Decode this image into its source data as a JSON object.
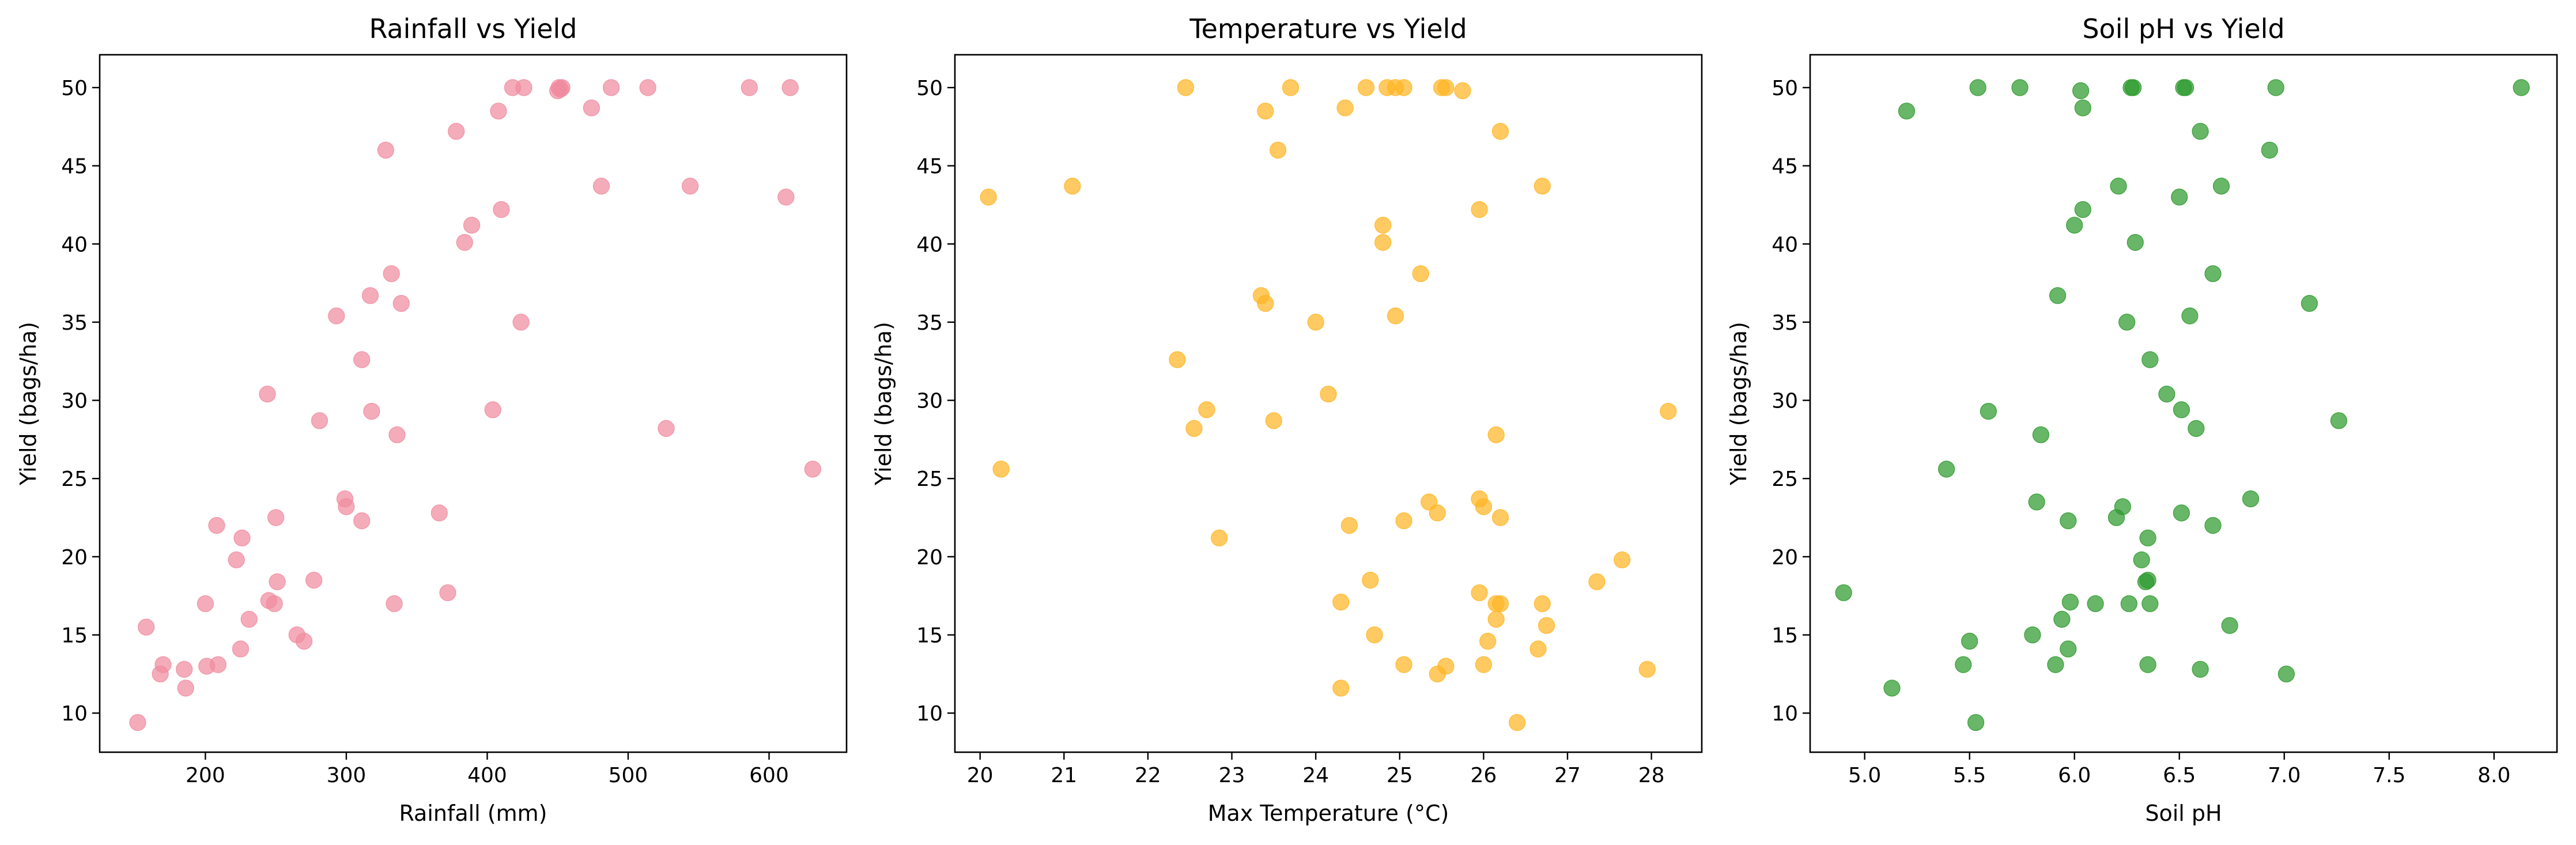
{
  "chart_data": [
    {
      "type": "scatter",
      "title": "Rainfall vs Yield",
      "xlabel": "Rainfall (mm)",
      "ylabel": "Yield (bags/ha)",
      "xlim": [
        125,
        655
      ],
      "ylim": [
        7.5,
        52.1
      ],
      "xticks": [
        200,
        300,
        400,
        500,
        600
      ],
      "yticks": [
        10,
        15,
        20,
        25,
        30,
        35,
        40,
        45,
        50
      ],
      "grid": false,
      "color": "#f08ca0",
      "points": [
        [
          152,
          9.4
        ],
        [
          158,
          15.5
        ],
        [
          168,
          12.5
        ],
        [
          170,
          13.1
        ],
        [
          185,
          12.8
        ],
        [
          186,
          11.6
        ],
        [
          200,
          17.0
        ],
        [
          201,
          13.0
        ],
        [
          208,
          22.0
        ],
        [
          209,
          13.1
        ],
        [
          222,
          19.8
        ],
        [
          226,
          21.2
        ],
        [
          225,
          14.1
        ],
        [
          231,
          16.0
        ],
        [
          244,
          30.4
        ],
        [
          245,
          17.2
        ],
        [
          249,
          17.0
        ],
        [
          250,
          22.5
        ],
        [
          251,
          18.4
        ],
        [
          265,
          15.0
        ],
        [
          270,
          14.6
        ],
        [
          277,
          18.5
        ],
        [
          281,
          28.7
        ],
        [
          293,
          35.4
        ],
        [
          299,
          23.7
        ],
        [
          300,
          23.2
        ],
        [
          311,
          22.3
        ],
        [
          311,
          32.6
        ],
        [
          317,
          36.7
        ],
        [
          318,
          29.3
        ],
        [
          328,
          46.0
        ],
        [
          332,
          38.1
        ],
        [
          334,
          17.0
        ],
        [
          336,
          27.8
        ],
        [
          339,
          36.2
        ],
        [
          366,
          22.8
        ],
        [
          372,
          17.7
        ],
        [
          378,
          47.2
        ],
        [
          384,
          40.1
        ],
        [
          389,
          41.2
        ],
        [
          404,
          29.4
        ],
        [
          408,
          48.5
        ],
        [
          410,
          42.2
        ],
        [
          418,
          50.0
        ],
        [
          424,
          35.0
        ],
        [
          426,
          50.0
        ],
        [
          450,
          49.8
        ],
        [
          451,
          50.0
        ],
        [
          452,
          49.9
        ],
        [
          453,
          50.0
        ],
        [
          474,
          48.7
        ],
        [
          481,
          43.7
        ],
        [
          488,
          50.0
        ],
        [
          514,
          50.0
        ],
        [
          527,
          28.2
        ],
        [
          544,
          43.7
        ],
        [
          586,
          50.0
        ],
        [
          612,
          43.0
        ],
        [
          615,
          50.0
        ],
        [
          631,
          25.6
        ]
      ]
    },
    {
      "type": "scatter",
      "title": "Temperature vs Yield",
      "xlabel": "Max Temperature (°C)",
      "ylabel": "Yield (bags/ha)",
      "xlim": [
        19.7,
        28.6
      ],
      "ylim": [
        7.5,
        52.1
      ],
      "xticks": [
        20,
        21,
        22,
        23,
        24,
        25,
        26,
        27,
        28
      ],
      "yticks": [
        10,
        15,
        20,
        25,
        30,
        35,
        40,
        45,
        50
      ],
      "grid": false,
      "color": "#ffb626",
      "points": [
        [
          20.1,
          43.0
        ],
        [
          20.25,
          25.6
        ],
        [
          21.1,
          43.7
        ],
        [
          22.35,
          32.6
        ],
        [
          22.45,
          50.0
        ],
        [
          22.55,
          28.2
        ],
        [
          22.7,
          29.4
        ],
        [
          22.85,
          21.2
        ],
        [
          23.35,
          36.7
        ],
        [
          23.4,
          36.2
        ],
        [
          23.4,
          48.5
        ],
        [
          23.5,
          28.7
        ],
        [
          23.55,
          46.0
        ],
        [
          23.7,
          50.0
        ],
        [
          24.0,
          35.0
        ],
        [
          24.15,
          30.4
        ],
        [
          24.3,
          17.1
        ],
        [
          24.3,
          11.6
        ],
        [
          24.35,
          48.7
        ],
        [
          24.4,
          22.0
        ],
        [
          24.6,
          50.0
        ],
        [
          24.65,
          18.5
        ],
        [
          24.7,
          15.0
        ],
        [
          24.8,
          40.1
        ],
        [
          24.8,
          41.2
        ],
        [
          24.85,
          50.0
        ],
        [
          24.95,
          50.0
        ],
        [
          24.95,
          35.4
        ],
        [
          25.05,
          13.1
        ],
        [
          25.05,
          22.3
        ],
        [
          25.05,
          50.0
        ],
        [
          25.25,
          38.1
        ],
        [
          25.35,
          23.5
        ],
        [
          25.45,
          12.5
        ],
        [
          25.45,
          22.8
        ],
        [
          25.5,
          50.0
        ],
        [
          25.55,
          13.0
        ],
        [
          25.55,
          50.0
        ],
        [
          25.75,
          49.8
        ],
        [
          25.95,
          42.2
        ],
        [
          25.95,
          17.7
        ],
        [
          25.95,
          23.7
        ],
        [
          26.0,
          23.2
        ],
        [
          26.0,
          13.1
        ],
        [
          26.05,
          14.6
        ],
        [
          26.15,
          27.8
        ],
        [
          26.15,
          17.0
        ],
        [
          26.15,
          16.0
        ],
        [
          26.2,
          17.0
        ],
        [
          26.2,
          22.5
        ],
        [
          26.2,
          47.2
        ],
        [
          26.4,
          9.4
        ],
        [
          26.65,
          14.1
        ],
        [
          26.7,
          17.0
        ],
        [
          26.7,
          43.7
        ],
        [
          26.75,
          15.6
        ],
        [
          27.35,
          18.4
        ],
        [
          27.65,
          19.8
        ],
        [
          27.95,
          12.8
        ],
        [
          28.2,
          29.3
        ]
      ]
    },
    {
      "type": "scatter",
      "title": "Soil pH vs Yield",
      "xlabel": "Soil pH",
      "ylabel": "Yield (bags/ha)",
      "xlim": [
        4.74,
        8.3
      ],
      "ylim": [
        7.5,
        52.1
      ],
      "xticks": [
        5.0,
        5.5,
        6.0,
        6.5,
        7.0,
        7.5,
        8.0
      ],
      "yticks": [
        10,
        15,
        20,
        25,
        30,
        35,
        40,
        45,
        50
      ],
      "grid": false,
      "color": "#2e9a2e",
      "points": [
        [
          4.9,
          17.7
        ],
        [
          5.13,
          11.6
        ],
        [
          5.2,
          48.5
        ],
        [
          5.39,
          25.6
        ],
        [
          5.47,
          13.1
        ],
        [
          5.5,
          14.6
        ],
        [
          5.53,
          9.4
        ],
        [
          5.54,
          50.0
        ],
        [
          5.59,
          29.3
        ],
        [
          5.74,
          50.0
        ],
        [
          5.8,
          15.0
        ],
        [
          5.82,
          23.5
        ],
        [
          5.84,
          27.8
        ],
        [
          5.91,
          13.1
        ],
        [
          5.92,
          36.7
        ],
        [
          5.94,
          16.0
        ],
        [
          5.97,
          14.1
        ],
        [
          5.97,
          22.3
        ],
        [
          5.98,
          17.1
        ],
        [
          6.0,
          41.2
        ],
        [
          6.03,
          49.8
        ],
        [
          6.04,
          42.2
        ],
        [
          6.04,
          48.7
        ],
        [
          6.1,
          17.0
        ],
        [
          6.2,
          22.5
        ],
        [
          6.21,
          43.7
        ],
        [
          6.23,
          23.2
        ],
        [
          6.25,
          35.0
        ],
        [
          6.26,
          17.0
        ],
        [
          6.27,
          50.0
        ],
        [
          6.28,
          50.0
        ],
        [
          6.29,
          40.1
        ],
        [
          6.32,
          19.8
        ],
        [
          6.34,
          18.4
        ],
        [
          6.35,
          13.1
        ],
        [
          6.35,
          21.2
        ],
        [
          6.35,
          18.5
        ],
        [
          6.36,
          32.6
        ],
        [
          6.36,
          17.0
        ],
        [
          6.44,
          30.4
        ],
        [
          6.5,
          43.0
        ],
        [
          6.51,
          22.8
        ],
        [
          6.51,
          29.4
        ],
        [
          6.52,
          50.0
        ],
        [
          6.53,
          50.0
        ],
        [
          6.55,
          35.4
        ],
        [
          6.58,
          28.2
        ],
        [
          6.6,
          12.8
        ],
        [
          6.6,
          47.2
        ],
        [
          6.66,
          38.1
        ],
        [
          6.66,
          22.0
        ],
        [
          6.7,
          43.7
        ],
        [
          6.74,
          15.6
        ],
        [
          6.84,
          23.7
        ],
        [
          6.93,
          46.0
        ],
        [
          6.96,
          50.0
        ],
        [
          7.01,
          12.5
        ],
        [
          7.12,
          36.2
        ],
        [
          7.26,
          28.7
        ],
        [
          8.13,
          50.0
        ]
      ]
    }
  ]
}
